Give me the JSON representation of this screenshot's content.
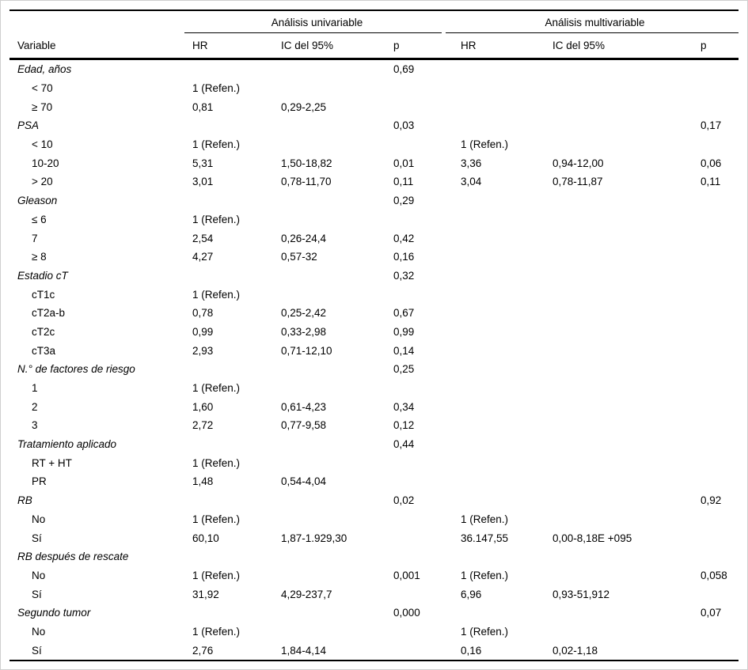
{
  "colors": {
    "text": "#000000",
    "rules": "#000000",
    "image_border": "#cfcfcf",
    "background": "#ffffff"
  },
  "table": {
    "headers": {
      "variable": "Variable",
      "univariable": "Análisis univariable",
      "multivariable": "Análisis multivariable",
      "hr": "HR",
      "ic": "IC del 95%",
      "p": "p"
    },
    "rows": [
      {
        "label": "Edad, años",
        "group": true,
        "u_hr": "",
        "u_ic": "",
        "u_p": "0,69",
        "m_hr": "",
        "m_ic": "",
        "m_p": ""
      },
      {
        "label": "< 70",
        "group": false,
        "u_hr": "1 (Refen.)",
        "u_ic": "",
        "u_p": "",
        "m_hr": "",
        "m_ic": "",
        "m_p": ""
      },
      {
        "label": "≥ 70",
        "group": false,
        "u_hr": "0,81",
        "u_ic": "0,29-2,25",
        "u_p": "",
        "m_hr": "",
        "m_ic": "",
        "m_p": ""
      },
      {
        "label": "PSA",
        "group": true,
        "u_hr": "",
        "u_ic": "",
        "u_p": "0,03",
        "m_hr": "",
        "m_ic": "",
        "m_p": "0,17"
      },
      {
        "label": "< 10",
        "group": false,
        "u_hr": "1 (Refen.)",
        "u_ic": "",
        "u_p": "",
        "m_hr": "1 (Refen.)",
        "m_ic": "",
        "m_p": ""
      },
      {
        "label": "10-20",
        "group": false,
        "u_hr": "5,31",
        "u_ic": "1,50-18,82",
        "u_p": "0,01",
        "m_hr": "3,36",
        "m_ic": "0,94-12,00",
        "m_p": "0,06"
      },
      {
        "label": "> 20",
        "group": false,
        "u_hr": "3,01",
        "u_ic": "0,78-11,70",
        "u_p": "0,11",
        "m_hr": "3,04",
        "m_ic": "0,78-11,87",
        "m_p": "0,11"
      },
      {
        "label": "Gleason",
        "group": true,
        "u_hr": "",
        "u_ic": "",
        "u_p": "0,29",
        "m_hr": "",
        "m_ic": "",
        "m_p": ""
      },
      {
        "label": "≤ 6",
        "group": false,
        "u_hr": "1 (Refen.)",
        "u_ic": "",
        "u_p": "",
        "m_hr": "",
        "m_ic": "",
        "m_p": ""
      },
      {
        "label": "7",
        "group": false,
        "u_hr": "2,54",
        "u_ic": "0,26-24,4",
        "u_p": "0,42",
        "m_hr": "",
        "m_ic": "",
        "m_p": ""
      },
      {
        "label": "≥ 8",
        "group": false,
        "u_hr": "4,27",
        "u_ic": "0,57-32",
        "u_p": "0,16",
        "m_hr": "",
        "m_ic": "",
        "m_p": ""
      },
      {
        "label": "Estadio cT",
        "group": true,
        "u_hr": "",
        "u_ic": "",
        "u_p": "0,32",
        "m_hr": "",
        "m_ic": "",
        "m_p": ""
      },
      {
        "label": "cT1c",
        "group": false,
        "u_hr": "1 (Refen.)",
        "u_ic": "",
        "u_p": "",
        "m_hr": "",
        "m_ic": "",
        "m_p": ""
      },
      {
        "label": "cT2a-b",
        "group": false,
        "u_hr": "0,78",
        "u_ic": "0,25-2,42",
        "u_p": "0,67",
        "m_hr": "",
        "m_ic": "",
        "m_p": ""
      },
      {
        "label": "cT2c",
        "group": false,
        "u_hr": "0,99",
        "u_ic": "0,33-2,98",
        "u_p": "0,99",
        "m_hr": "",
        "m_ic": "",
        "m_p": ""
      },
      {
        "label": "cT3a",
        "group": false,
        "u_hr": "2,93",
        "u_ic": "0,71-12,10",
        "u_p": "0,14",
        "m_hr": "",
        "m_ic": "",
        "m_p": ""
      },
      {
        "label": "N.° de factores de riesgo",
        "group": true,
        "u_hr": "",
        "u_ic": "",
        "u_p": "0,25",
        "m_hr": "",
        "m_ic": "",
        "m_p": ""
      },
      {
        "label": "1",
        "group": false,
        "u_hr": "1 (Refen.)",
        "u_ic": "",
        "u_p": "",
        "m_hr": "",
        "m_ic": "",
        "m_p": ""
      },
      {
        "label": "2",
        "group": false,
        "u_hr": "1,60",
        "u_ic": "0,61-4,23",
        "u_p": "0,34",
        "m_hr": "",
        "m_ic": "",
        "m_p": ""
      },
      {
        "label": "3",
        "group": false,
        "u_hr": "2,72",
        "u_ic": "0,77-9,58",
        "u_p": "0,12",
        "m_hr": "",
        "m_ic": "",
        "m_p": ""
      },
      {
        "label": "Tratamiento aplicado",
        "group": true,
        "u_hr": "",
        "u_ic": "",
        "u_p": "0,44",
        "m_hr": "",
        "m_ic": "",
        "m_p": ""
      },
      {
        "label": "RT + HT",
        "group": false,
        "u_hr": "1 (Refen.)",
        "u_ic": "",
        "u_p": "",
        "m_hr": "",
        "m_ic": "",
        "m_p": ""
      },
      {
        "label": "PR",
        "group": false,
        "u_hr": "1,48",
        "u_ic": "0,54-4,04",
        "u_p": "",
        "m_hr": "",
        "m_ic": "",
        "m_p": ""
      },
      {
        "label": "RB",
        "group": true,
        "u_hr": "",
        "u_ic": "",
        "u_p": "0,02",
        "m_hr": "",
        "m_ic": "",
        "m_p": "0,92"
      },
      {
        "label": "No",
        "group": false,
        "u_hr": "1 (Refen.)",
        "u_ic": "",
        "u_p": "",
        "m_hr": "1 (Refen.)",
        "m_ic": "",
        "m_p": ""
      },
      {
        "label": "Sí",
        "group": false,
        "u_hr": "60,10",
        "u_ic": "1,87-1.929,30",
        "u_p": "",
        "m_hr": "36.147,55",
        "m_ic": "0,00-8,18E +095",
        "m_p": ""
      },
      {
        "label": "RB después de rescate",
        "group": true,
        "u_hr": "",
        "u_ic": "",
        "u_p": "",
        "m_hr": "",
        "m_ic": "",
        "m_p": ""
      },
      {
        "label": "No",
        "group": false,
        "u_hr": "1 (Refen.)",
        "u_ic": "",
        "u_p": "0,001",
        "m_hr": "1 (Refen.)",
        "m_ic": "",
        "m_p": "0,058"
      },
      {
        "label": "Sí",
        "group": false,
        "u_hr": "31,92",
        "u_ic": "4,29-237,7",
        "u_p": "",
        "m_hr": "6,96",
        "m_ic": "0,93-51,912",
        "m_p": ""
      },
      {
        "label": "Segundo tumor",
        "group": true,
        "u_hr": "",
        "u_ic": "",
        "u_p": "0,000",
        "m_hr": "",
        "m_ic": "",
        "m_p": "0,07"
      },
      {
        "label": "No",
        "group": false,
        "u_hr": "1 (Refen.)",
        "u_ic": "",
        "u_p": "",
        "m_hr": "1 (Refen.)",
        "m_ic": "",
        "m_p": ""
      },
      {
        "label": "Sí",
        "group": false,
        "u_hr": "2,76",
        "u_ic": "1,84-4,14",
        "u_p": "",
        "m_hr": "0,16",
        "m_ic": "0,02-1,18",
        "m_p": ""
      }
    ]
  }
}
